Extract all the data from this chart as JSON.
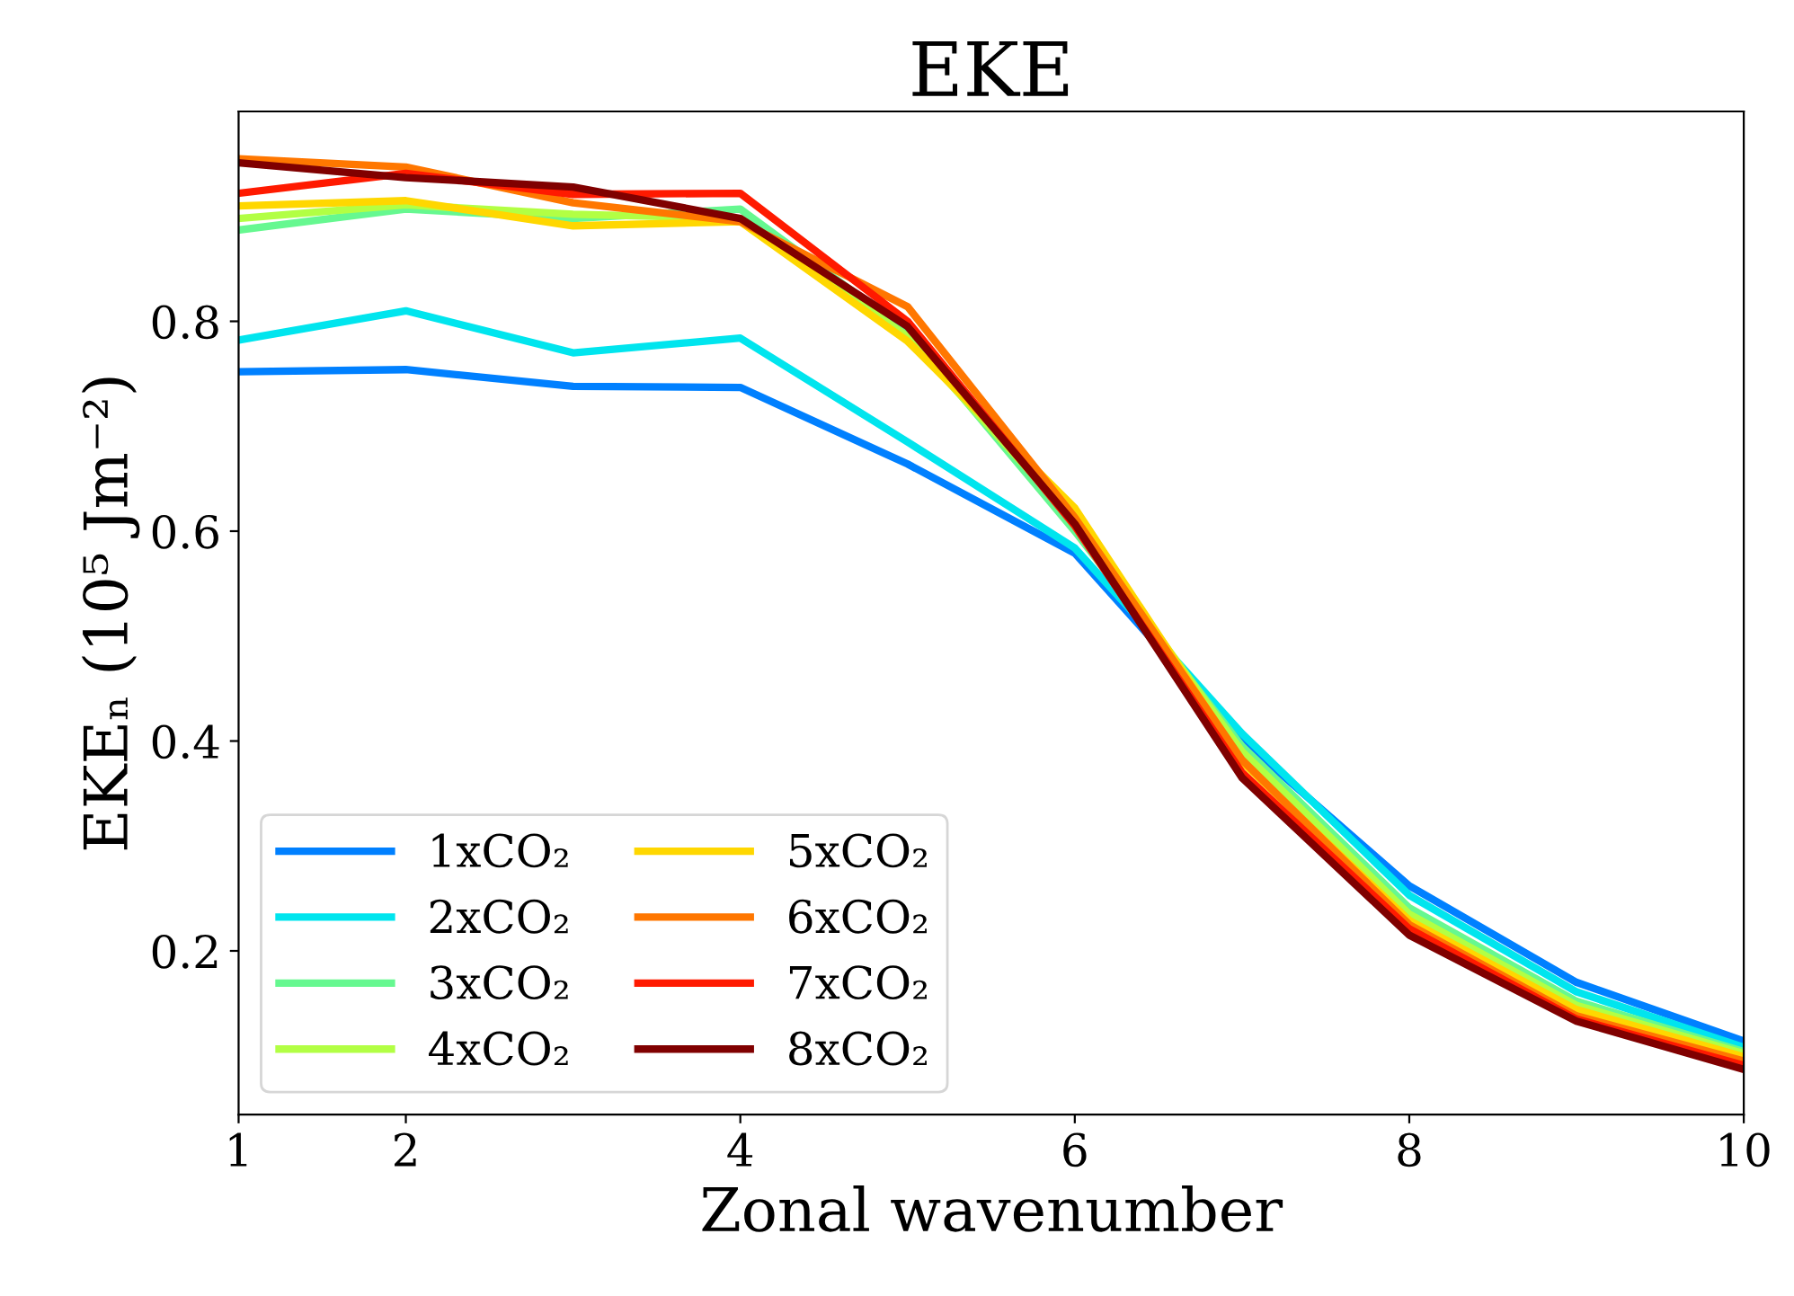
{
  "chart_data": {
    "type": "line",
    "title": "EKE",
    "xlabel": "Zonal wavenumber",
    "ylabel": "EKEₙ (10⁵ Jm⁻²)",
    "x": [
      1,
      2,
      3,
      4,
      5,
      6,
      7,
      8,
      9,
      10
    ],
    "series": [
      {
        "name": "1xCO₂",
        "color": "#0080ff",
        "values": [
          0.752,
          0.754,
          0.738,
          0.737,
          0.664,
          0.579,
          0.401,
          0.262,
          0.17,
          0.114
        ]
      },
      {
        "name": "2xCO₂",
        "color": "#00e5ee",
        "values": [
          0.782,
          0.81,
          0.77,
          0.784,
          0.685,
          0.584,
          0.407,
          0.253,
          0.161,
          0.108
        ]
      },
      {
        "name": "3xCO₂",
        "color": "#66f890",
        "values": [
          0.887,
          0.907,
          0.898,
          0.907,
          0.79,
          0.6,
          0.395,
          0.241,
          0.152,
          0.104
        ]
      },
      {
        "name": "4xCO₂",
        "color": "#b2ff44",
        "values": [
          0.898,
          0.911,
          0.902,
          0.898,
          0.785,
          0.61,
          0.39,
          0.235,
          0.148,
          0.102
        ]
      },
      {
        "name": "5xCO₂",
        "color": "#ffd700",
        "values": [
          0.91,
          0.915,
          0.891,
          0.895,
          0.781,
          0.622,
          0.38,
          0.229,
          0.144,
          0.099
        ]
      },
      {
        "name": "6xCO₂",
        "color": "#ff7700",
        "values": [
          0.955,
          0.947,
          0.913,
          0.895,
          0.814,
          0.613,
          0.382,
          0.225,
          0.138,
          0.095
        ]
      },
      {
        "name": "7xCO₂",
        "color": "#ff1a00",
        "values": [
          0.922,
          0.941,
          0.921,
          0.922,
          0.8,
          0.605,
          0.37,
          0.221,
          0.135,
          0.091
        ]
      },
      {
        "name": "8xCO₂",
        "color": "#800000",
        "values": [
          0.951,
          0.937,
          0.928,
          0.898,
          0.795,
          0.607,
          0.365,
          0.215,
          0.133,
          0.087
        ]
      }
    ],
    "xlim": [
      1,
      10
    ],
    "xticks": [
      1,
      2,
      4,
      6,
      8,
      10
    ],
    "ylim": [
      0.044,
      1.0
    ],
    "yticks": [
      0.2,
      0.4,
      0.6,
      0.8
    ],
    "grid": false,
    "legend": "bottom left",
    "marker": "none",
    "line_style": "solid"
  }
}
